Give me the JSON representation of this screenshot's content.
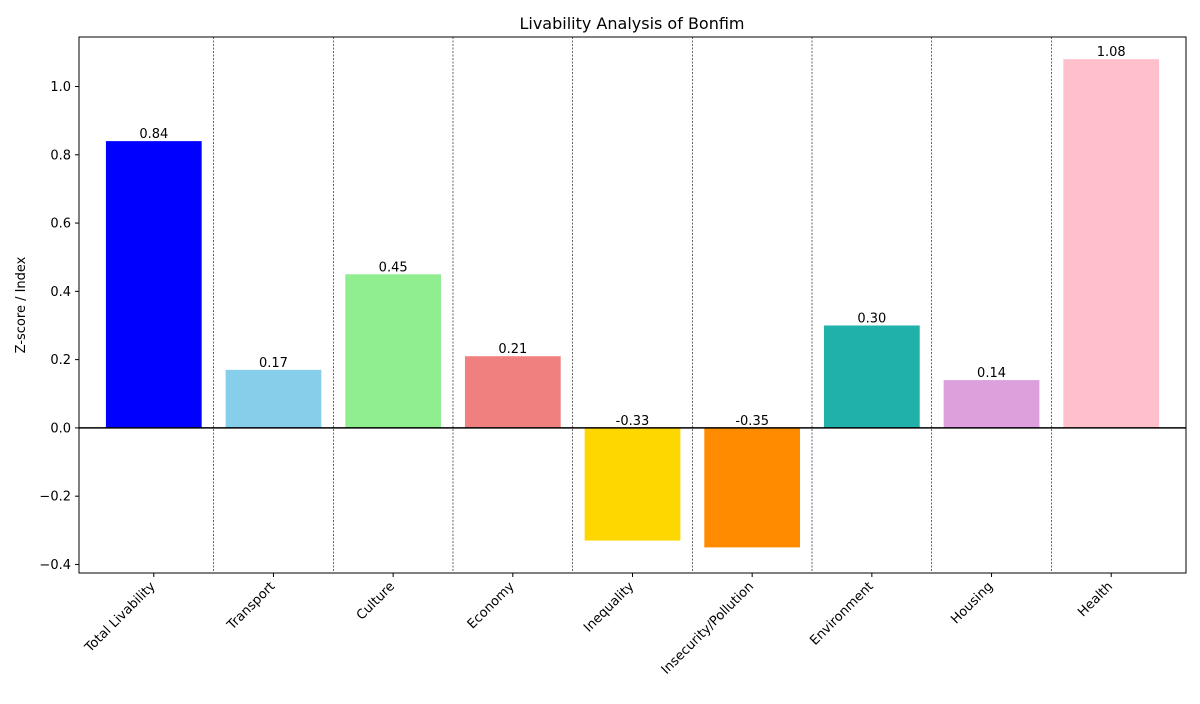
{
  "chart_data": {
    "type": "bar",
    "title": "Livability Analysis of Bonfim",
    "xlabel": "",
    "ylabel": "Z-score / Index",
    "categories": [
      "Total Livability",
      "Transport",
      "Culture",
      "Economy",
      "Inequality",
      "Insecurity/Pollution",
      "Environment",
      "Housing",
      "Health"
    ],
    "values": [
      0.84,
      0.17,
      0.45,
      0.21,
      -0.33,
      -0.35,
      0.3,
      0.14,
      1.08
    ],
    "value_labels": [
      "0.84",
      "0.17",
      "0.45",
      "0.21",
      "-0.33",
      "-0.35",
      "0.30",
      "0.14",
      "1.08"
    ],
    "colors": [
      "#0000ff",
      "#87ceeb",
      "#90ee90",
      "#f08080",
      "#ffd700",
      "#ff8c00",
      "#20b2aa",
      "#dda0dd",
      "#ffc0cb"
    ],
    "ylim": [
      -0.425,
      1.145
    ],
    "yticks": [
      -0.4,
      -0.2,
      0.0,
      0.2,
      0.4,
      0.6,
      0.8,
      1.0
    ],
    "ytick_labels": [
      "−0.4",
      "−0.2",
      "0.0",
      "0.2",
      "0.4",
      "0.6",
      "0.8",
      "1.0"
    ],
    "zero_line": true,
    "category_separators": true,
    "grid": false,
    "legend": "none"
  }
}
